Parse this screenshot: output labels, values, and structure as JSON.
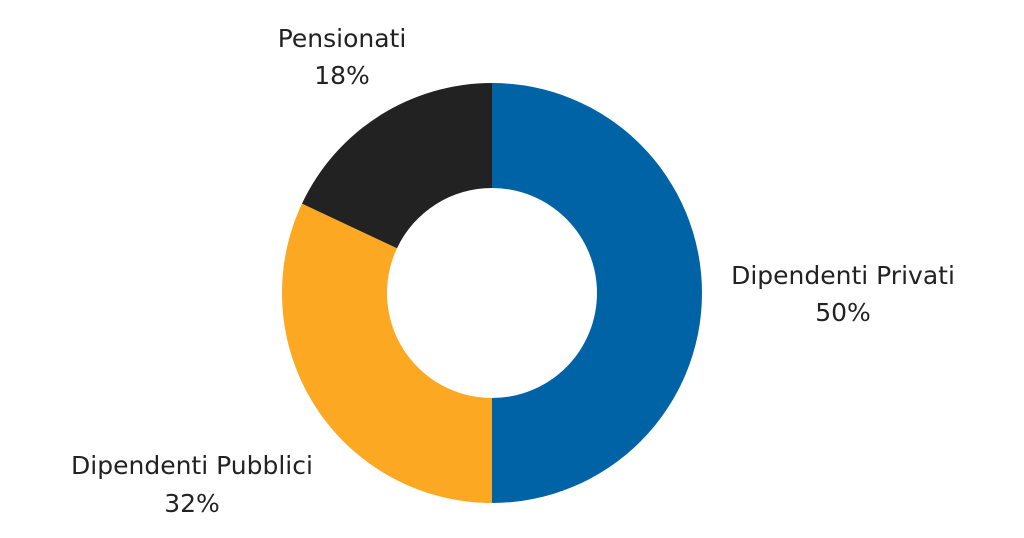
{
  "chart_data": {
    "type": "pie",
    "variant": "donut",
    "title": "",
    "slices": [
      {
        "label": "Dipendenti Privati",
        "value": 50,
        "display": "50%",
        "color": "#0063a6"
      },
      {
        "label": "Dipendenti Pubblici",
        "value": 32,
        "display": "32%",
        "color": "#fca823"
      },
      {
        "label": "Pensionati",
        "value": 18,
        "display": "18%",
        "color": "#222222"
      }
    ],
    "start": "12 o'clock",
    "direction": "clockwise",
    "legend": "none"
  }
}
